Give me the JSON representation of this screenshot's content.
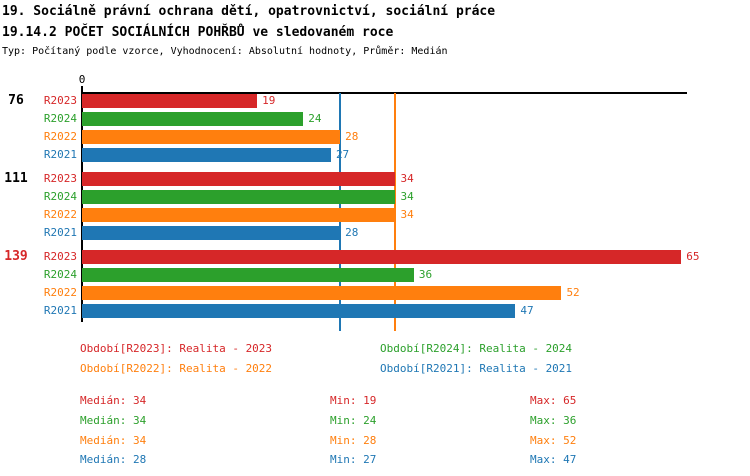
{
  "header": {
    "line1": "19. Sociálně právní ochrana dětí, opatrovnictví, sociální práce",
    "line2": "19.14.2 POČET SOCIÁLNÍCH POHŘBŮ ve sledovaném roce",
    "line3": "Typ: Počítaný podle vzorce, Vyhodnocení: Absolutní hodnoty, Průměr: Medián"
  },
  "colors": {
    "R2023": "#d62728",
    "R2024": "#2ca02c",
    "R2022": "#ff7f0e",
    "R2021": "#1f77b4",
    "axis": "#000000",
    "group_label": "#000000",
    "group_label_highlight": "#d62728"
  },
  "chart_data": {
    "type": "bar",
    "orientation": "horizontal",
    "xlim": [
      0,
      65
    ],
    "axis_zero_label": "0",
    "grid": false,
    "series_order": [
      "R2023",
      "R2024",
      "R2022",
      "R2021"
    ],
    "groups": [
      {
        "label": "76",
        "highlight": false,
        "values": {
          "R2023": 19,
          "R2024": 24,
          "R2022": 28,
          "R2021": 27
        }
      },
      {
        "label": "111",
        "highlight": false,
        "values": {
          "R2023": 34,
          "R2024": 34,
          "R2022": 34,
          "R2021": 28
        }
      },
      {
        "label": "139",
        "highlight": true,
        "values": {
          "R2023": 65,
          "R2024": 36,
          "R2022": 52,
          "R2021": 47
        }
      }
    ],
    "reference_lines": [
      {
        "series": "R2021",
        "value": 28
      },
      {
        "series": "R2022",
        "value": 34
      }
    ]
  },
  "legend": [
    {
      "id": "R2023",
      "label": "Období[R2023]: Realita - 2023"
    },
    {
      "id": "R2024",
      "label": "Období[R2024]: Realita - 2024"
    },
    {
      "id": "R2022",
      "label": "Období[R2022]: Realita - 2022"
    },
    {
      "id": "R2021",
      "label": "Období[R2021]: Realita - 2021"
    }
  ],
  "stats_labels": {
    "median": "Medián",
    "min": "Min",
    "max": "Max"
  },
  "stats": [
    {
      "id": "R2023",
      "median": 34,
      "min": 19,
      "max": 65
    },
    {
      "id": "R2024",
      "median": 34,
      "min": 24,
      "max": 36
    },
    {
      "id": "R2022",
      "median": 34,
      "min": 28,
      "max": 52
    },
    {
      "id": "R2021",
      "median": 28,
      "min": 27,
      "max": 47
    }
  ]
}
